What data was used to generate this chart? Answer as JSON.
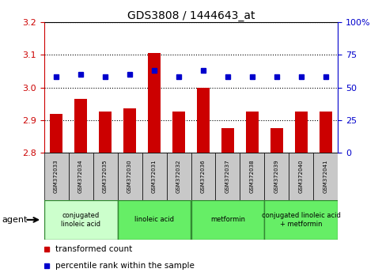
{
  "title": "GDS3808 / 1444643_at",
  "samples": [
    "GSM372033",
    "GSM372034",
    "GSM372035",
    "GSM372030",
    "GSM372031",
    "GSM372032",
    "GSM372036",
    "GSM372037",
    "GSM372038",
    "GSM372039",
    "GSM372040",
    "GSM372041"
  ],
  "bar_values": [
    2.92,
    2.965,
    2.925,
    2.935,
    3.105,
    2.925,
    3.0,
    2.875,
    2.925,
    2.875,
    2.925,
    2.925
  ],
  "percentile_values": [
    58,
    60,
    58,
    60,
    63,
    58,
    63,
    58,
    58,
    58,
    58,
    58
  ],
  "ymin": 2.8,
  "ymax": 3.2,
  "y2min": 0,
  "y2max": 100,
  "yticks": [
    2.8,
    2.9,
    3.0,
    3.1,
    3.2
  ],
  "y2ticks": [
    0,
    25,
    50,
    75,
    100
  ],
  "bar_color": "#cc0000",
  "dot_color": "#0000cc",
  "agent_groups": [
    {
      "label": "conjugated\nlinoleic acid",
      "start": 0,
      "end": 3,
      "color": "#ccffcc"
    },
    {
      "label": "linoleic acid",
      "start": 3,
      "end": 6,
      "color": "#66ee66"
    },
    {
      "label": "metformin",
      "start": 6,
      "end": 9,
      "color": "#66ee66"
    },
    {
      "label": "conjugated linoleic acid\n+ metformin",
      "start": 9,
      "end": 12,
      "color": "#66ee66"
    }
  ],
  "bar_width": 0.5,
  "legend_bar_label": "transformed count",
  "legend_dot_label": "percentile rank within the sample",
  "agent_label": "agent",
  "sample_box_color": "#c8c8c8",
  "left_color": "#cc0000",
  "right_color": "#0000cc",
  "group_border_color": "#338833"
}
